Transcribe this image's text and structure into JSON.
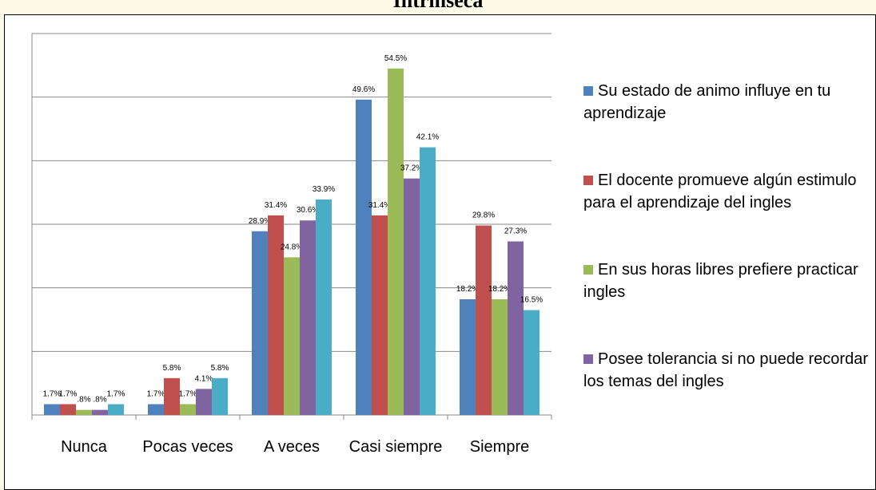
{
  "chart_data": {
    "type": "bar",
    "title": "Intrínseca",
    "categories": [
      "Nunca",
      "Pocas veces",
      "A veces",
      "Casi siempre",
      "Siempre"
    ],
    "ylim": [
      0,
      60
    ],
    "yticks": [
      0,
      10,
      20,
      30,
      40,
      50,
      60
    ],
    "grid": true,
    "legend": "right",
    "series": [
      {
        "name": "Su estado de animo influye en tu aprendizaje",
        "color": "#4f81bd",
        "values": [
          1.7,
          1.7,
          28.9,
          49.6,
          18.2
        ],
        "value_labels": [
          "1.7%",
          "1.7%",
          "28.9%",
          "49.6%",
          "18.2%"
        ]
      },
      {
        "name": "El docente promueve algún estimulo para el aprendizaje del ingles",
        "color": "#c0504d",
        "values": [
          1.7,
          5.8,
          31.4,
          31.4,
          29.8
        ],
        "value_labels": [
          "1.7%",
          "5.8%",
          "31.4%",
          "31.4%",
          "29.8%"
        ]
      },
      {
        "name": "En sus horas libres prefiere practicar ingles",
        "color": "#9bbb59",
        "values": [
          0.8,
          1.7,
          24.8,
          54.5,
          18.2
        ],
        "value_labels": [
          ".8%",
          "1.7%",
          "24.8%",
          "54.5%",
          "18.2%"
        ]
      },
      {
        "name": "Posee tolerancia si no puede recordar los temas del ingles",
        "color": "#8064a2",
        "values": [
          0.8,
          4.1,
          30.6,
          37.2,
          27.3
        ],
        "value_labels": [
          ".8%",
          "4.1%",
          "30.6%",
          "37.2%",
          "27.3%"
        ]
      },
      {
        "color": "#4bacc6",
        "values": [
          1.7,
          5.8,
          33.9,
          42.1,
          16.5
        ],
        "value_labels": [
          "1.7%",
          "5.8%",
          "33.9%",
          "42.1%",
          "16.5%"
        ]
      }
    ]
  }
}
